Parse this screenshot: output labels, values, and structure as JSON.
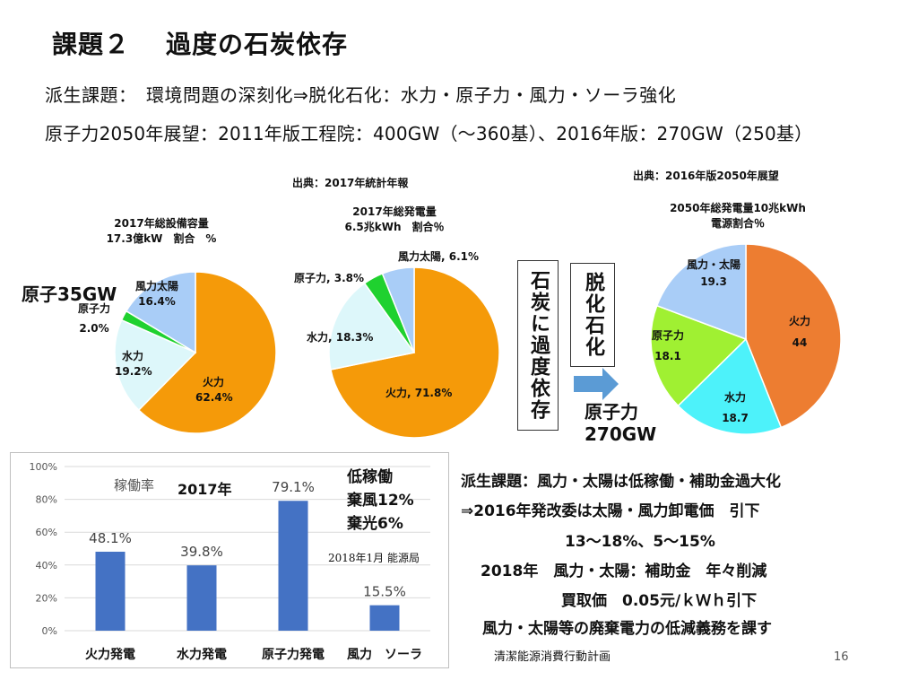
{
  "title": {
    "num": "課題２",
    "text": "過度の石炭依存"
  },
  "subtitle": "派生課題：　環境問題の深刻化⇒脱化石化：水力・原子力・風力・ソーラ強化",
  "outlook": "原子力2050年展望：2011年版工程院：400GW（～360基）、2016年版：270GW（250基）",
  "pie1": {
    "caption1": "2017年総設備容量",
    "caption2": "17.3億kW　割合　%",
    "note": "原子35GW"
  },
  "pie2": {
    "source": "出典：2017年統計年報",
    "caption1": "2017年総発電量",
    "caption2": "6.5兆kWh　割合％"
  },
  "pie3": {
    "source": "出典：2016年版2050年展望",
    "caption1": "2050年総発電量10兆kWh",
    "caption2": "電源割合％"
  },
  "box_coal": "石炭に過度依存",
  "box_decarb": "脱化石化",
  "nuclear_note": {
    "line1": "原子力",
    "line2": "270GW"
  },
  "bar_extra": {
    "low": "低稼働",
    "wind": "棄風12%",
    "solar": "棄光6%",
    "src": "2018年1月 能源局"
  },
  "right_text": [
    "派生課題：風力・太陽は低稼働・補助金過大化",
    "⇒2016年発改委は太陽・風力卸電価　引下",
    "13～18%、5～15%",
    "2018年　風力・太陽：補助金　年々削減",
    "買取価　0.05元/ｋＷｈ引下",
    "風力・太陽等の廃棄電力の低減義務を課す"
  ],
  "footer": "清潔能源消費行動計画",
  "page": "16",
  "colors": {
    "thermal": "#F59A09",
    "hydro": "#DDF7FA",
    "nuclear": "#1FD12F",
    "wind": "#A9CDF7",
    "bar": "#4472C4"
  },
  "chart_data": [
    {
      "type": "pie",
      "title": "2017年総設備容量 17.3億kW 割合 %",
      "slices": [
        {
          "name": "火力",
          "value": 62.4,
          "label": "火力\n62.4%",
          "color": "#F59A09"
        },
        {
          "name": "水力",
          "value": 19.2,
          "label": "水力\n19.2%",
          "color": "#DDF7FA"
        },
        {
          "name": "原子力",
          "value": 2.0,
          "label": "原子力\n2.0%",
          "color": "#1FD12F"
        },
        {
          "name": "風力太陽",
          "value": 16.4,
          "label": "風力太陽\n16.4%",
          "color": "#A9CDF7"
        }
      ]
    },
    {
      "type": "pie",
      "title": "2017年総発電量 6.5兆kWh 割合％",
      "slices": [
        {
          "name": "火力",
          "value": 71.8,
          "label": "火力, 71.8%",
          "color": "#F59A09"
        },
        {
          "name": "水力",
          "value": 18.3,
          "label": "水力, 18.3%",
          "color": "#DDF7FA"
        },
        {
          "name": "原子力",
          "value": 3.8,
          "label": "原子力, 3.8%",
          "color": "#1FD12F"
        },
        {
          "name": "風力太陽",
          "value": 6.1,
          "label": "風力太陽, 6.1%",
          "color": "#A9CDF7"
        }
      ]
    },
    {
      "type": "pie",
      "title": "2050年総発電量10兆kWh 電源割合％",
      "slices": [
        {
          "name": "火力",
          "value": 44,
          "label": "火力,\n44",
          "color": "#ED7D31"
        },
        {
          "name": "水力",
          "value": 18.7,
          "label": "水力,\n18.7",
          "color": "#4DF2FA"
        },
        {
          "name": "原子力",
          "value": 18.1,
          "label": "原子\n力,\n18.1",
          "color": "#A0F032"
        },
        {
          "name": "風力・太陽",
          "value": 19.3,
          "label": "風力・\n太陽,\n19.3",
          "color": "#A9CDF7"
        }
      ]
    },
    {
      "type": "bar",
      "title": "稼働率",
      "year": "2017年",
      "categories": [
        "火力発電",
        "水力発電",
        "原子力発電",
        "風力　ソーラ"
      ],
      "values": [
        48.1,
        39.8,
        79.1,
        15.5
      ],
      "value_labels": [
        "48.1%",
        "39.8%",
        "79.1%",
        "15.5%"
      ],
      "ylim": [
        0,
        100
      ],
      "yticks": [
        "0%",
        "20%",
        "40%",
        "60%",
        "80%",
        "100%"
      ]
    }
  ]
}
